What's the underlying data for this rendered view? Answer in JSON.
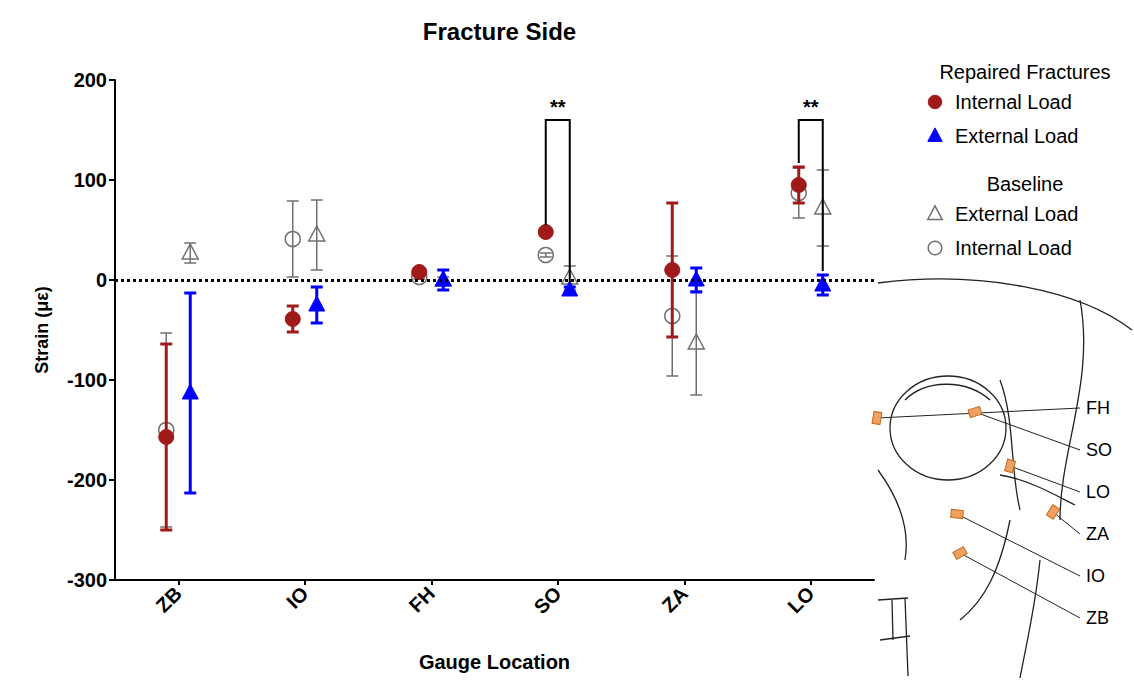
{
  "chart_data": {
    "type": "scatter",
    "title": "Fracture Side",
    "x_label": "Gauge Location",
    "y_label": "Strain (με)",
    "categories": [
      "ZB",
      "IO",
      "FH",
      "SO",
      "ZA",
      "LO"
    ],
    "series": [
      {
        "name": "Internal Load",
        "group": "Repaired Fractures",
        "color": "#a11a1a",
        "marker": "circle",
        "values": [
          -157,
          -39,
          8,
          48,
          10,
          95
        ],
        "errors": [
          93,
          13,
          3,
          3,
          67,
          18
        ]
      },
      {
        "name": "External Load",
        "group": "Repaired Fractures",
        "color": "#0000ff",
        "marker": "triangle",
        "values": [
          -113,
          -25,
          0,
          -10,
          0,
          -5
        ],
        "errors": [
          100,
          18,
          10,
          3,
          12,
          10
        ]
      },
      {
        "name": "External Load",
        "group": "Baseline",
        "color": "#707070",
        "marker": "open_triangle",
        "values": [
          27,
          45,
          0,
          2,
          -63,
          72
        ],
        "errors": [
          10,
          35,
          3,
          12,
          52,
          38
        ]
      },
      {
        "name": "Internal Load",
        "group": "Baseline",
        "color": "#707070",
        "marker": "open_circle",
        "values": [
          -150,
          41,
          3,
          25,
          -36,
          87
        ],
        "errors": [
          97,
          38,
          2,
          2,
          60,
          25
        ]
      }
    ],
    "ylim": [
      -300,
      200
    ],
    "yticks": [
      -300,
      -200,
      -100,
      0,
      100,
      200
    ],
    "grid": false,
    "legend": "right",
    "hline": 0,
    "annotations": [
      {
        "text": "**",
        "category": "SO",
        "y": 160
      },
      {
        "text": "**",
        "category": "LO",
        "y": 160
      }
    ],
    "diagram_labels": [
      "FH",
      "SO",
      "LO",
      "ZA",
      "IO",
      "ZB"
    ]
  }
}
